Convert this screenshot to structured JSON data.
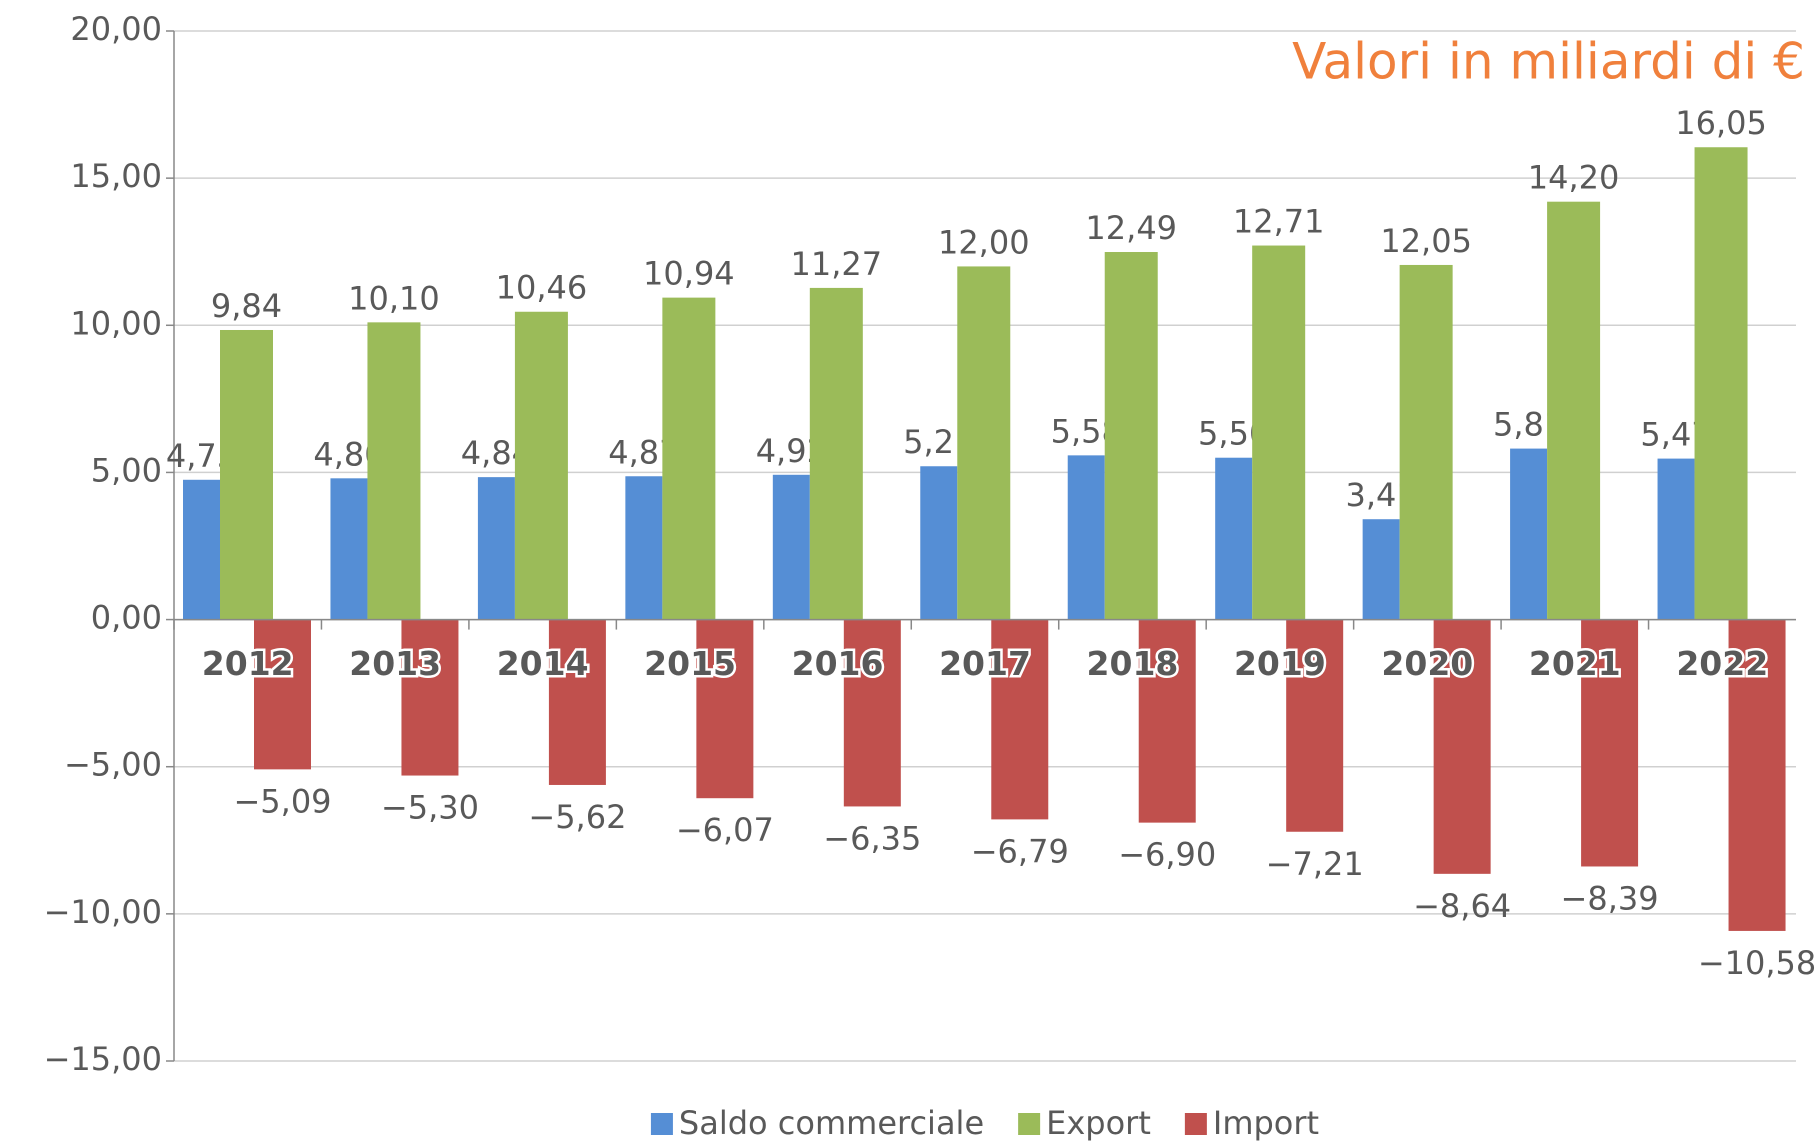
{
  "chart_data": {
    "type": "bar",
    "title": "Valori in miliardi di €",
    "categories": [
      "2012",
      "2013",
      "2014",
      "2015",
      "2016",
      "2017",
      "2018",
      "2019",
      "2020",
      "2021",
      "2022"
    ],
    "series": [
      {
        "name": "Saldo commerciale",
        "color": "#558ed5",
        "values": [
          4.75,
          4.8,
          4.84,
          4.87,
          4.92,
          5.21,
          5.58,
          5.5,
          3.41,
          5.81,
          5.47
        ],
        "value_labels": [
          "4,75",
          "4,80",
          "4,84",
          "4,87",
          "4,92",
          "5,21",
          "5,58",
          "5,50",
          "3,41",
          "5,81",
          "5,47"
        ]
      },
      {
        "name": "Export",
        "color": "#9bbb59",
        "values": [
          9.84,
          10.1,
          10.46,
          10.94,
          11.27,
          12.0,
          12.49,
          12.71,
          12.05,
          14.2,
          16.05
        ],
        "value_labels": [
          "9,84",
          "10,10",
          "10,46",
          "10,94",
          "11,27",
          "12,00",
          "12,49",
          "12,71",
          "12,05",
          "14,20",
          "16,05"
        ]
      },
      {
        "name": "Import",
        "color": "#c0504d",
        "values": [
          -5.09,
          -5.3,
          -5.62,
          -6.07,
          -6.35,
          -6.79,
          -6.9,
          -7.21,
          -8.64,
          -8.39,
          -10.58
        ],
        "value_labels": [
          "−5,09",
          "−5,30",
          "−5,62",
          "−6,07",
          "−6,35",
          "−6,79",
          "−6,90",
          "−7,21",
          "−8,64",
          "−8,39",
          "−10,58"
        ]
      }
    ],
    "ylim": [
      -15,
      20
    ],
    "yticks": [
      {
        "value": -15,
        "label": "−15,00"
      },
      {
        "value": -10,
        "label": "−10,00"
      },
      {
        "value": -5,
        "label": "−5,00"
      },
      {
        "value": 0,
        "label": "0,00"
      },
      {
        "value": 5,
        "label": "5,00"
      },
      {
        "value": 10,
        "label": "10,00"
      },
      {
        "value": 15,
        "label": "15,00"
      },
      {
        "value": 20,
        "label": "20,00"
      }
    ],
    "grid": true,
    "legend": "bottom"
  }
}
